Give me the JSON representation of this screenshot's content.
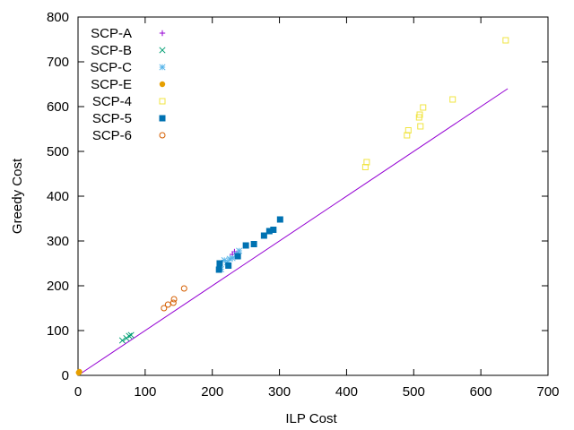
{
  "chart_data": {
    "type": "scatter",
    "title": "",
    "xlabel": "ILP Cost",
    "ylabel": "Greedy Cost",
    "xlim": [
      0,
      700
    ],
    "ylim": [
      0,
      800
    ],
    "xticks": [
      0,
      100,
      200,
      300,
      400,
      500,
      600,
      700
    ],
    "yticks": [
      0,
      100,
      200,
      300,
      400,
      500,
      600,
      700,
      800
    ],
    "grid": false,
    "legend_position": "top-left",
    "reference_line": {
      "x": [
        0,
        640
      ],
      "y": [
        0,
        640
      ],
      "color": "#9400d3"
    },
    "series": [
      {
        "name": "SCP-A",
        "marker": "plus",
        "color": "#9400d3",
        "x": [
          230,
          233
        ],
        "y": [
          270,
          276
        ]
      },
      {
        "name": "SCP-B",
        "marker": "cross",
        "color": "#009e73",
        "x": [
          66,
          72,
          76,
          79
        ],
        "y": [
          78,
          83,
          88,
          90
        ]
      },
      {
        "name": "SCP-C",
        "marker": "star",
        "color": "#56b4e9",
        "x": [
          213,
          218,
          222,
          226,
          230,
          236,
          240
        ],
        "y": [
          237,
          257,
          252,
          260,
          262,
          270,
          278
        ]
      },
      {
        "name": "SCP-E",
        "marker": "filled-circle",
        "color": "#e69f00",
        "x": [
          1,
          2
        ],
        "y": [
          6,
          8
        ]
      },
      {
        "name": "SCP-4",
        "marker": "open-square",
        "color": "#f0e442",
        "x": [
          428,
          430,
          490,
          492,
          508,
          509,
          510,
          514,
          558,
          637
        ],
        "y": [
          465,
          476,
          536,
          547,
          576,
          582,
          556,
          598,
          616,
          748
        ]
      },
      {
        "name": "SCP-5",
        "marker": "filled-square",
        "color": "#0072b2",
        "x": [
          210,
          211,
          224,
          238,
          250,
          262,
          277,
          285,
          291,
          301
        ],
        "y": [
          236,
          250,
          245,
          266,
          290,
          293,
          312,
          322,
          325,
          348
        ]
      },
      {
        "name": "SCP-6",
        "marker": "open-circle",
        "color": "#d55e00",
        "x": [
          128,
          134,
          142,
          143,
          158
        ],
        "y": [
          150,
          158,
          162,
          170,
          194
        ]
      }
    ]
  }
}
